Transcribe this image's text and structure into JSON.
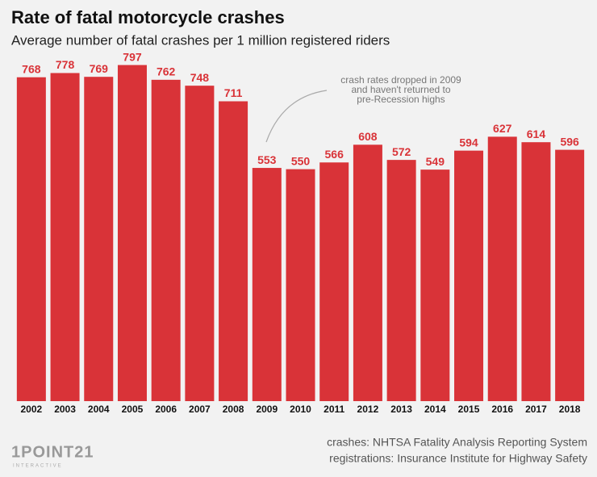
{
  "chart_data": {
    "type": "bar",
    "title": "Rate of fatal motorcycle crashes",
    "subtitle": "Average number of fatal crashes per 1 million registered riders",
    "categories": [
      "2002",
      "2003",
      "2004",
      "2005",
      "2006",
      "2007",
      "2008",
      "2009",
      "2010",
      "2011",
      "2012",
      "2013",
      "2014",
      "2015",
      "2016",
      "2017",
      "2018"
    ],
    "values": [
      768,
      778,
      769,
      797,
      762,
      748,
      711,
      553,
      550,
      566,
      608,
      572,
      549,
      594,
      627,
      614,
      596
    ],
    "color": "#d93338",
    "ylim": [
      0,
      800
    ],
    "annotation": [
      "crash rates dropped in 2009",
      "and haven't returned to",
      "pre-Recession highs"
    ],
    "sources": [
      "crashes: NHTSA Fatality Analysis Reporting System",
      "registrations: Insurance Institute for Highway Safety"
    ],
    "logo": {
      "name": "1POINT21",
      "tagline": "INTERACTIVE"
    }
  }
}
